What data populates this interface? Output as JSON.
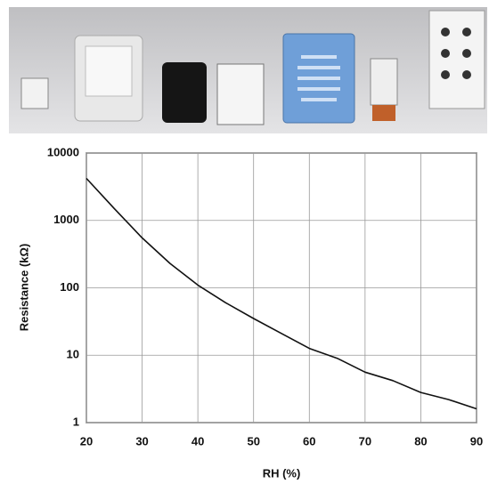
{
  "chart_data": {
    "type": "line",
    "x": [
      20,
      25,
      30,
      35,
      40,
      45,
      50,
      55,
      60,
      65,
      70,
      75,
      80,
      85,
      90
    ],
    "values": [
      4200,
      1500,
      550,
      230,
      110,
      60,
      35,
      21,
      12.6,
      9,
      5.6,
      4.2,
      2.8,
      2.2,
      1.6
    ],
    "color": "#111111",
    "x_label": "RH (%)",
    "y_label": "Resistance (kΩ)",
    "xlim": [
      20,
      90
    ],
    "xticks": [
      20,
      30,
      40,
      50,
      60,
      70,
      80,
      90
    ],
    "ylim": [
      1,
      10000
    ],
    "yticks": [
      1,
      10,
      100,
      1000,
      10000
    ],
    "log_y": true,
    "grid": true
  }
}
